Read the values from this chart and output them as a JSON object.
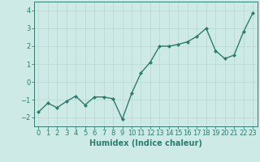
{
  "x": [
    0,
    1,
    2,
    3,
    4,
    5,
    6,
    7,
    8,
    9,
    10,
    11,
    12,
    13,
    14,
    15,
    16,
    17,
    18,
    19,
    20,
    21,
    22,
    23
  ],
  "y": [
    -1.7,
    -1.2,
    -1.45,
    -1.1,
    -0.8,
    -1.3,
    -0.85,
    -0.85,
    -0.95,
    -2.1,
    -0.65,
    0.5,
    1.1,
    2.0,
    2.0,
    2.1,
    2.25,
    2.55,
    3.0,
    1.75,
    1.3,
    1.5,
    2.8,
    3.85
  ],
  "xlabel": "Humidex (Indice chaleur)",
  "xlim": [
    -0.5,
    23.5
  ],
  "ylim": [
    -2.5,
    4.5
  ],
  "yticks": [
    -2,
    -1,
    0,
    1,
    2,
    3,
    4
  ],
  "xticks": [
    0,
    1,
    2,
    3,
    4,
    5,
    6,
    7,
    8,
    9,
    10,
    11,
    12,
    13,
    14,
    15,
    16,
    17,
    18,
    19,
    20,
    21,
    22,
    23
  ],
  "line_color": "#2d7d6e",
  "marker": "D",
  "marker_size": 2.0,
  "bg_color": "#cdeae6",
  "grid_color": "#b8d8d4",
  "axis_color": "#2d7d6e",
  "tick_label_color": "#2d7d6e",
  "xlabel_color": "#2d7d6e",
  "xlabel_fontsize": 7,
  "tick_fontsize": 6,
  "linewidth": 1.0
}
